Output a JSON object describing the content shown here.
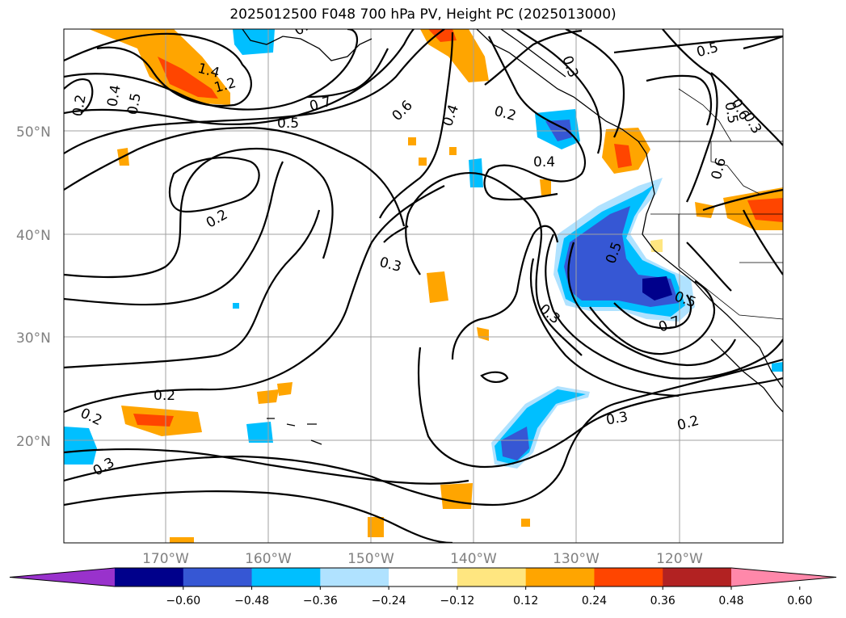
{
  "title": "2025012500 F048 700 hPa PV, Height PC (2025013000)",
  "lat_labels": [
    "50°N",
    "40°N",
    "30°N",
    "20°N"
  ],
  "lon_labels": [
    "170°W",
    "160°W",
    "150°W",
    "140°W",
    "130°W",
    "120°W"
  ],
  "colorbar": {
    "ticks": [
      "−0.60",
      "−0.48",
      "−0.36",
      "−0.24",
      "−0.12",
      "0.12",
      "0.24",
      "0.36",
      "0.48",
      "0.60"
    ],
    "colors": [
      "#9932cc",
      "#00008b",
      "#3657d4",
      "#00bfff",
      "#b0e2ff",
      "#ffffff",
      "#ffe680",
      "#ffa500",
      "#ff4500",
      "#b22222",
      "#ff88aa"
    ]
  },
  "contour_labels": [
    "1.4",
    "1.2",
    "0.7",
    "0.5",
    "0.6",
    "0.4",
    "0.3",
    "0.2",
    "0.2",
    "0.4",
    "0.5",
    "0.3",
    "0.2",
    "0.3",
    "0.5",
    "0.7",
    "0.6",
    "0.3",
    "0.2",
    "0.2",
    "0.3",
    "0.2",
    "0.5",
    "0.4",
    "0.5",
    "0.6",
    "0.3",
    "0.5",
    "0.3"
  ]
}
